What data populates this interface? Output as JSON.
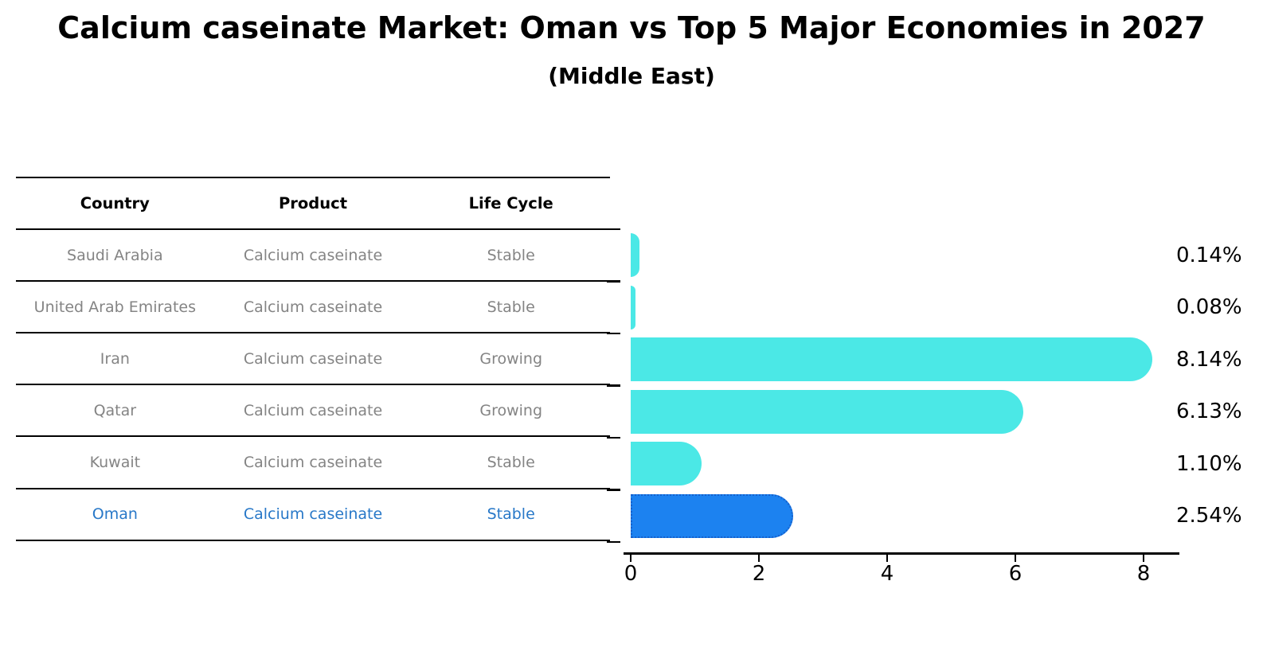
{
  "title": "Calcium caseinate Market: Oman vs Top 5 Major Economies in 2027",
  "subtitle": "(Middle East)",
  "table": {
    "columns": [
      "Country",
      "Product",
      "Life Cycle"
    ],
    "rows": [
      {
        "country": "Saudi Arabia",
        "product": "Calcium caseinate",
        "life_cycle": "Stable",
        "highlight": false
      },
      {
        "country": "United Arab Emirates",
        "product": "Calcium caseinate",
        "life_cycle": "Stable",
        "highlight": false
      },
      {
        "country": "Iran",
        "product": "Calcium caseinate",
        "life_cycle": "Growing",
        "highlight": false
      },
      {
        "country": "Qatar",
        "product": "Calcium caseinate",
        "life_cycle": "Growing",
        "highlight": false
      },
      {
        "country": "Kuwait",
        "product": "Calcium caseinate",
        "life_cycle": "Stable",
        "highlight": false
      },
      {
        "country": "Oman",
        "product": "Calcium caseinate",
        "life_cycle": "Stable",
        "highlight": true
      }
    ]
  },
  "chart_data": {
    "type": "bar",
    "orientation": "horizontal",
    "title": "Calcium caseinate Market: Oman vs Top 5 Major Economies in 2027",
    "subtitle": "(Middle East)",
    "categories": [
      "Saudi Arabia",
      "United Arab Emirates",
      "Iran",
      "Qatar",
      "Kuwait",
      "Oman"
    ],
    "values": [
      0.14,
      0.08,
      8.14,
      6.13,
      1.1,
      2.54
    ],
    "value_labels": [
      "0.14%",
      "0.08%",
      "8.14%",
      "6.13%",
      "1.10%",
      "2.54%"
    ],
    "x_ticks": [
      "0",
      "2",
      "4",
      "6",
      "8"
    ],
    "x_tick_values": [
      0,
      2,
      4,
      6,
      8
    ],
    "xlim": [
      0,
      8.6
    ],
    "grid": false,
    "legend": false,
    "highlight_index": 5,
    "bar_color": "#4BE8E6",
    "highlight_bar_color": "#1C82F0",
    "highlight_bar_border_color": "#1560CC",
    "highlight_text_color": "#2878c8",
    "body_text_color": "#848484"
  }
}
